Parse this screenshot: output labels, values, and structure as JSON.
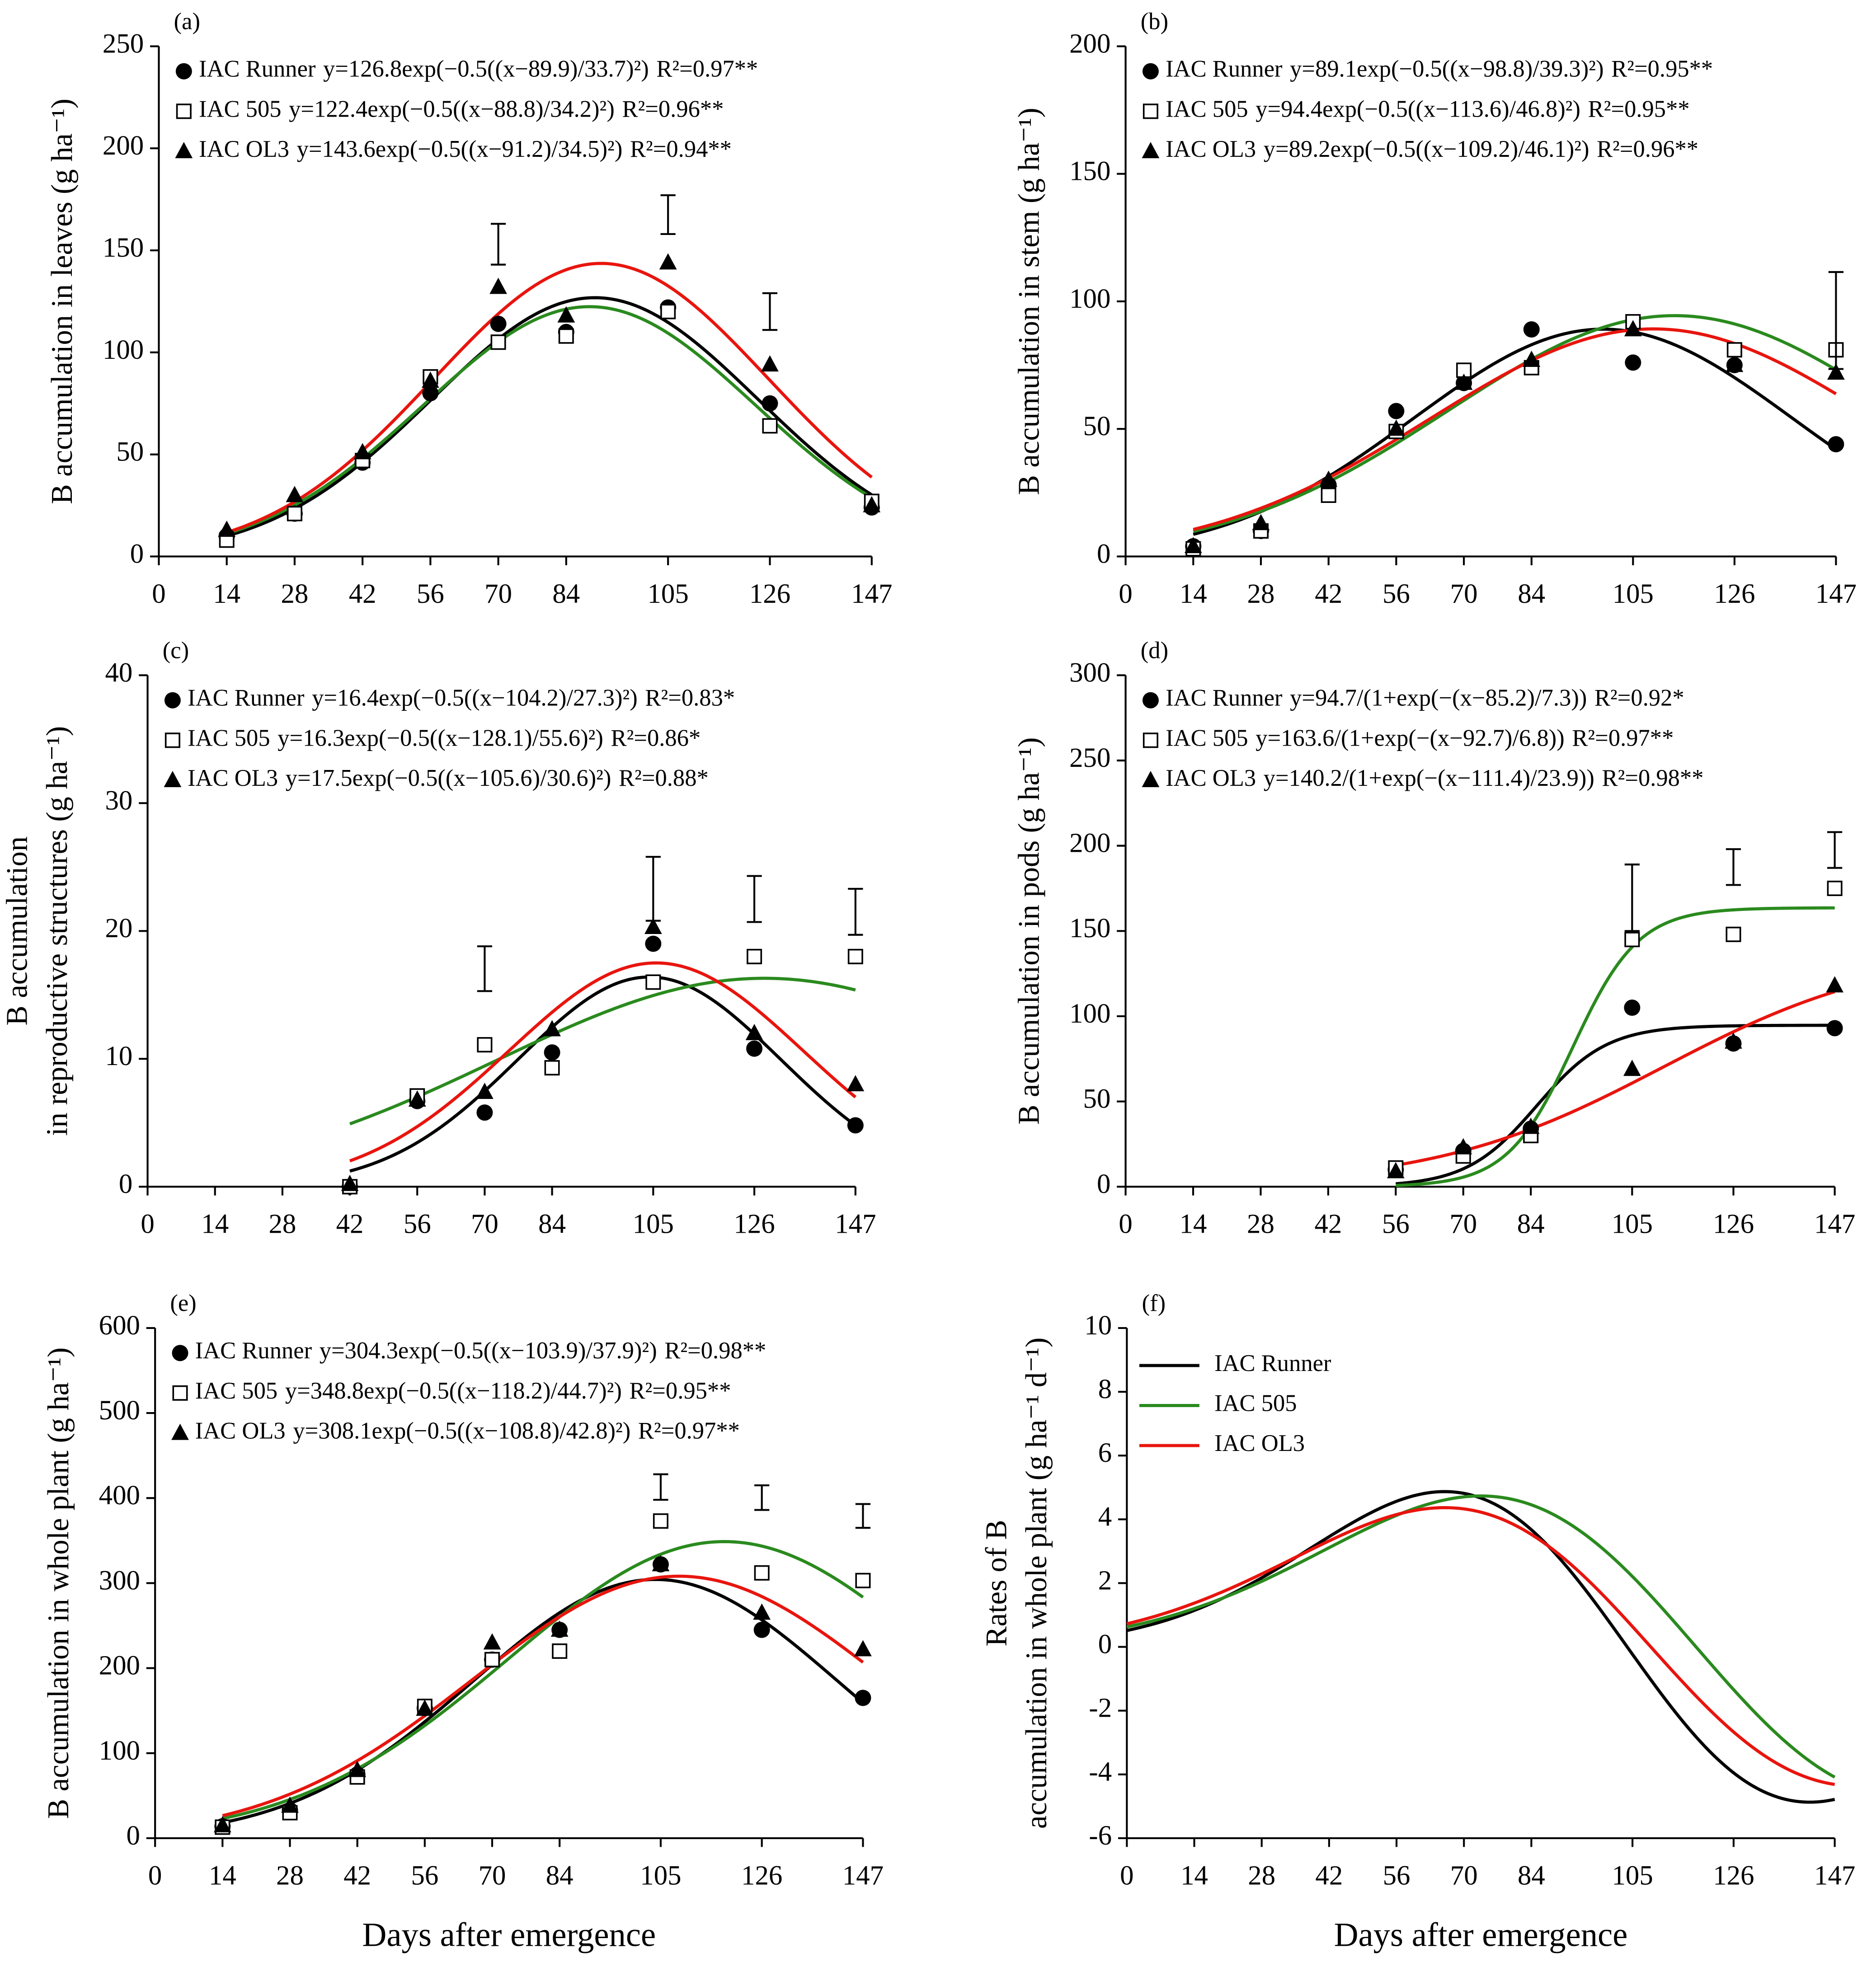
{
  "chart_data": [
    {
      "type": "scatter",
      "label": "(a)",
      "ylabel": [
        "B accumulation in leaves (g ha⁻¹)"
      ],
      "x": [
        14,
        28,
        42,
        56,
        70,
        84,
        105,
        126,
        147
      ],
      "xlim": [
        0,
        147
      ],
      "xticks": [
        0,
        14,
        28,
        42,
        56,
        70,
        84,
        105,
        126,
        147
      ],
      "ylim": [
        0,
        250
      ],
      "yticks": [
        0,
        50,
        100,
        150,
        200,
        250
      ],
      "series": [
        {
          "name": "IAC Runner",
          "marker": "circle",
          "marker_color": "#000000",
          "color": "#000000",
          "values": [
            10,
            21,
            46,
            80,
            114,
            110,
            122,
            75,
            24
          ],
          "equation": "y=126.8exp(−0.5((x−89.9)/33.7)²)",
          "r2": "R²=0.97**",
          "fit": {
            "model": "gauss",
            "a": 126.8,
            "b": 89.9,
            "c": 33.7
          }
        },
        {
          "name": "IAC 505",
          "marker": "square",
          "marker_color": "#000000",
          "color": "#2a8a1e",
          "values": [
            8,
            21,
            47,
            88,
            105,
            108,
            120,
            64,
            27
          ],
          "equation": "y=122.4exp(−0.5((x−88.8)/34.2)²)",
          "r2": "R²=0.96**",
          "fit": {
            "model": "gauss",
            "a": 122.4,
            "b": 88.8,
            "c": 34.2
          }
        },
        {
          "name": "IAC OL3",
          "marker": "triangle",
          "marker_color": "#000000",
          "color": "#e8150e",
          "values": [
            13,
            30,
            51,
            86,
            132,
            118,
            144,
            94,
            25
          ],
          "equation": "y=143.6exp(−0.5((x−91.2)/34.5)²)",
          "r2": "R²=0.94**",
          "fit": {
            "model": "gauss",
            "a": 143.6,
            "b": 91.2,
            "c": 34.5
          }
        }
      ],
      "error_bars": {
        "x": [
          70,
          105,
          126
        ],
        "values": [
          153,
          167.5,
          120
        ],
        "errors": [
          10,
          9.5,
          9
        ]
      }
    },
    {
      "type": "scatter",
      "label": "(b)",
      "ylabel": [
        "B accumulation in stem (g ha⁻¹)"
      ],
      "x": [
        14,
        28,
        42,
        56,
        70,
        84,
        105,
        126,
        147
      ],
      "xlim": [
        0,
        147
      ],
      "xticks": [
        0,
        14,
        28,
        42,
        56,
        70,
        84,
        105,
        126,
        147
      ],
      "ylim": [
        0,
        200
      ],
      "yticks": [
        0,
        50,
        100,
        150,
        200
      ],
      "series": [
        {
          "name": "IAC Runner",
          "marker": "circle",
          "marker_color": "#000000",
          "color": "#000000",
          "values": [
            4,
            10,
            28,
            57,
            68,
            89,
            76,
            75,
            44
          ],
          "equation": "y=89.1exp(−0.5((x−98.8)/39.3)²)",
          "r2": "R²=0.95**",
          "fit": {
            "model": "gauss",
            "a": 89.1,
            "b": 98.8,
            "c": 39.3
          }
        },
        {
          "name": "IAC 505",
          "marker": "square",
          "marker_color": "#000000",
          "color": "#2a8a1e",
          "values": [
            3,
            10,
            24,
            49,
            73,
            74,
            92,
            81,
            81
          ],
          "equation": "y=94.4exp(−0.5((x−113.6)/46.8)²)",
          "r2": "R²=0.95**",
          "fit": {
            "model": "gauss",
            "a": 94.4,
            "b": 113.6,
            "c": 46.8
          }
        },
        {
          "name": "IAC OL3",
          "marker": "triangle",
          "marker_color": "#000000",
          "color": "#e8150e",
          "values": [
            4,
            13,
            30,
            50,
            68,
            77,
            89,
            75,
            72
          ],
          "equation": "y=89.2exp(−0.5((x−109.2)/46.1)²)",
          "r2": "R²=0.96**",
          "fit": {
            "model": "gauss",
            "a": 89.2,
            "b": 109.2,
            "c": 46.1
          }
        }
      ],
      "error_bars": {
        "x": [
          147
        ],
        "values": [
          92.5
        ],
        "errors": [
          19
        ]
      }
    },
    {
      "type": "scatter",
      "label": "(c)",
      "ylabel": [
        "B accumulation",
        "in reproductive structures (g ha⁻¹)"
      ],
      "x": [
        42,
        56,
        70,
        84,
        105,
        126,
        147
      ],
      "xlim": [
        0,
        147
      ],
      "xticks": [
        0,
        14,
        28,
        42,
        56,
        70,
        84,
        105,
        126,
        147
      ],
      "ylim": [
        0,
        40
      ],
      "yticks": [
        0,
        10,
        20,
        30,
        40
      ],
      "series": [
        {
          "name": "IAC Runner",
          "marker": "circle",
          "marker_color": "#000000",
          "color": "#000000",
          "values": [
            0,
            6.7,
            5.8,
            10.5,
            19,
            10.8,
            4.8
          ],
          "equation": "y=16.4exp(−0.5((x−104.2)/27.3)²)",
          "r2": "R²=0.83*",
          "fit": {
            "model": "gauss",
            "a": 16.4,
            "b": 104.2,
            "c": 27.3
          }
        },
        {
          "name": "IAC 505",
          "marker": "square",
          "marker_color": "#000000",
          "color": "#2a8a1e",
          "values": [
            0,
            7.1,
            11.1,
            9.3,
            16,
            18,
            18
          ],
          "equation": "y=16.3exp(−0.5((x−128.1)/55.6)²)",
          "r2": "R²=0.86*",
          "fit": {
            "model": "gauss",
            "a": 16.3,
            "b": 128.1,
            "c": 55.6
          }
        },
        {
          "name": "IAC OL3",
          "marker": "triangle",
          "marker_color": "#000000",
          "color": "#e8150e",
          "values": [
            0.2,
            6.8,
            7.4,
            12.3,
            20.3,
            12,
            8
          ],
          "equation": "y=17.5exp(−0.5((x−105.6)/30.6)²)",
          "r2": "R²=0.88*",
          "fit": {
            "model": "gauss",
            "a": 17.5,
            "b": 105.6,
            "c": 30.6
          }
        }
      ],
      "error_bars": {
        "x": [
          70,
          105,
          126,
          147
        ],
        "values": [
          17.05,
          23.3,
          22.5,
          21.5
        ],
        "errors": [
          1.75,
          2.5,
          1.8,
          1.8
        ]
      }
    },
    {
      "type": "scatter",
      "label": "(d)",
      "ylabel": [
        "B accumulation in pods (g ha⁻¹)"
      ],
      "x": [
        56,
        70,
        84,
        105,
        126,
        147
      ],
      "xlim": [
        0,
        147
      ],
      "xticks": [
        0,
        14,
        28,
        42,
        56,
        70,
        84,
        105,
        126,
        147
      ],
      "ylim": [
        0,
        300
      ],
      "yticks": [
        0,
        50,
        100,
        150,
        200,
        250,
        300
      ],
      "series": [
        {
          "name": "IAC Runner",
          "marker": "circle",
          "marker_color": "#000000",
          "color": "#000000",
          "values": [
            10,
            21,
            34,
            105,
            84,
            93
          ],
          "equation": "y=94.7/(1+exp(−(x−85.2)/7.3))",
          "r2": "R²=0.92*",
          "fit": {
            "model": "logistic",
            "a": 94.7,
            "b": 85.2,
            "c": 7.3
          }
        },
        {
          "name": "IAC 505",
          "marker": "square",
          "marker_color": "#000000",
          "color": "#2a8a1e",
          "values": [
            11,
            18,
            30,
            145,
            148,
            175
          ],
          "equation": "y=163.6/(1+exp(−(x−92.7)/6.8))",
          "r2": "R²=0.97**",
          "fit": {
            "model": "logistic",
            "a": 163.6,
            "b": 92.7,
            "c": 6.8
          }
        },
        {
          "name": "IAC OL3",
          "marker": "triangle",
          "marker_color": "#000000",
          "color": "#e8150e",
          "values": [
            9,
            23,
            35,
            69,
            85,
            118
          ],
          "equation": "y=140.2/(1+exp(−(x−111.4)/23.9))",
          "r2": "R²=0.98**",
          "fit": {
            "model": "logistic",
            "a": 140.2,
            "b": 111.4,
            "c": 23.9
          }
        }
      ],
      "error_bars": {
        "x": [
          105,
          126,
          147
        ],
        "values": [
          169.5,
          187.5,
          197.5
        ],
        "errors": [
          19.5,
          10.5,
          10.5
        ]
      }
    },
    {
      "type": "scatter",
      "label": "(e)",
      "ylabel": [
        "B accumulation in whole plant (g ha⁻¹)"
      ],
      "xlabel": "Days after emergence",
      "x": [
        14,
        28,
        42,
        56,
        70,
        84,
        105,
        126,
        147
      ],
      "xlim": [
        0,
        147
      ],
      "xticks": [
        0,
        14,
        28,
        42,
        56,
        70,
        84,
        105,
        126,
        147
      ],
      "ylim": [
        0,
        600
      ],
      "yticks": [
        0,
        100,
        200,
        300,
        400,
        500,
        600
      ],
      "series": [
        {
          "name": "IAC Runner",
          "marker": "circle",
          "marker_color": "#000000",
          "color": "#000000",
          "values": [
            14,
            33,
            75,
            153,
            210,
            245,
            322,
            245,
            165
          ],
          "equation": "y=304.3exp(−0.5((x−103.9)/37.9)²)",
          "r2": "R²=0.98**",
          "fit": {
            "model": "gauss",
            "a": 304.3,
            "b": 103.9,
            "c": 37.9
          }
        },
        {
          "name": "IAC 505",
          "marker": "square",
          "marker_color": "#000000",
          "color": "#2a8a1e",
          "values": [
            13,
            30,
            72,
            155,
            210,
            220,
            373,
            312,
            303
          ],
          "equation": "y=348.8exp(−0.5((x−118.2)/44.7)²)",
          "r2": "R²=0.95**",
          "fit": {
            "model": "gauss",
            "a": 348.8,
            "b": 118.2,
            "c": 44.7
          }
        },
        {
          "name": "IAC OL3",
          "marker": "triangle",
          "marker_color": "#000000",
          "color": "#e8150e",
          "values": [
            15,
            38,
            80,
            152,
            230,
            245,
            322,
            265,
            222
          ],
          "equation": "y=308.1exp(−0.5((x−108.8)/42.8)²)",
          "r2": "R²=0.97**",
          "fit": {
            "model": "gauss",
            "a": 308.1,
            "b": 108.8,
            "c": 42.8
          }
        }
      ],
      "error_bars": {
        "x": [
          105,
          126,
          147
        ],
        "values": [
          413,
          400.5,
          379
        ],
        "errors": [
          15,
          14.5,
          14
        ]
      }
    },
    {
      "type": "line",
      "label": "(f)",
      "ylabel": [
        "Rates of B",
        "accumulation in whole plant (g ha⁻¹ d⁻¹)"
      ],
      "xlabel": "Days after emergence",
      "xlim": [
        0,
        147
      ],
      "xticks": [
        0,
        14,
        28,
        42,
        56,
        70,
        84,
        105,
        126,
        147
      ],
      "ylim": [
        -6,
        10
      ],
      "yticks": [
        -6,
        -4,
        -2,
        0,
        2,
        4,
        6,
        8,
        10
      ],
      "series": [
        {
          "name": "IAC Runner",
          "color": "#000000",
          "fit": {
            "model": "gauss_rate",
            "a": 304.3,
            "b": 103.9,
            "c": 37.9
          }
        },
        {
          "name": "IAC 505",
          "color": "#2a8a1e",
          "fit": {
            "model": "gauss_rate",
            "a": 348.8,
            "b": 118.2,
            "c": 44.7
          }
        },
        {
          "name": "IAC OL3",
          "color": "#e8150e",
          "fit": {
            "model": "gauss_rate",
            "a": 308.1,
            "b": 108.8,
            "c": 42.8
          }
        }
      ]
    }
  ]
}
